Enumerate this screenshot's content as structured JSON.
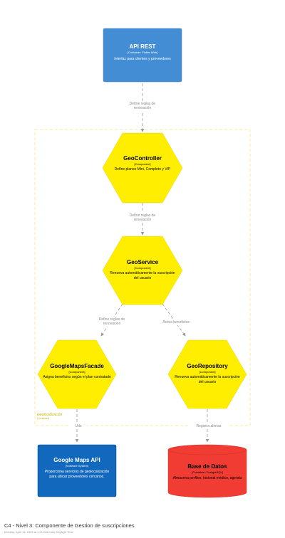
{
  "colors": {
    "container": "#438dd5",
    "component": "#ffee00",
    "external": "#1168bd",
    "database": "#f03c32",
    "edge": "#9a9a9a",
    "boundary": "#ffe57a"
  },
  "nodes": {
    "api": {
      "title": "API REST",
      "type": "[Container: Flutter Web]",
      "desc": "Interfaz para clientes y proveedores"
    },
    "controller": {
      "title": "GeoController",
      "type": "[Component]",
      "desc": "Define planes Mini, Completo y VIP"
    },
    "service": {
      "title": "GeoService",
      "type": "[Component]",
      "desc": "Renueva automáticamente la suscripción del usuario"
    },
    "facade": {
      "title": "GoogleMapsFacade",
      "type": "[Component]",
      "desc": "Asigna beneficios según el plan contratado"
    },
    "repo": {
      "title": "GeoRepository",
      "type": "[Component]",
      "desc": "Renueva automáticamente la suscripción del usuario"
    },
    "gmaps": {
      "title": "Google Maps API",
      "type": "[Software System]",
      "desc": "Proporciona servicios de geolocalización para ubicar proveedores cercanos."
    },
    "db": {
      "title": "Base de Datos",
      "type": "[Container: PostgreSQL]",
      "desc": "Almacena perfiles, historial médico, agenda"
    }
  },
  "edges": {
    "e1": "Define reglas de renovación",
    "e2": "Define reglas de renovación",
    "e3": "Define reglas de renovación",
    "e4": "Activa beneficios",
    "e5": "Uds",
    "e6": "Registra alertas"
  },
  "boundary": {
    "name": "Geolocalización",
    "type": "[Container]"
  },
  "footer": {
    "title": "C4 - Nivel 3: Componente de Gestion de suscripciones",
    "meta": "Monday, April 14, 2025 at 1:21 AM Cuba Daylight Time"
  }
}
